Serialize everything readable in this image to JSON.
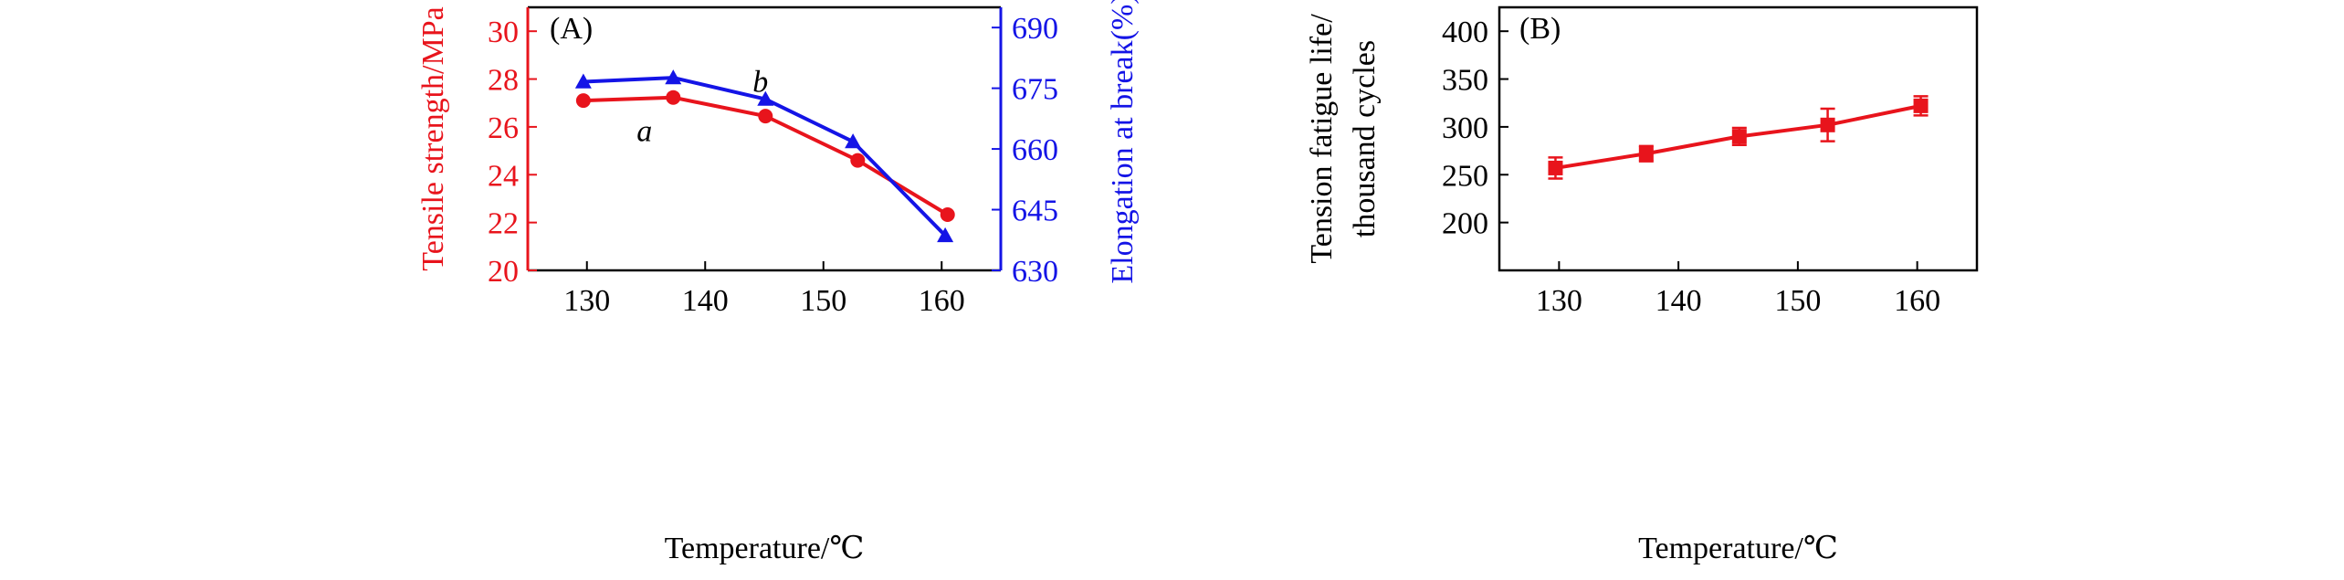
{
  "chart_data": [
    {
      "panel_label": "(A)",
      "type": "line",
      "xlabel": "Temperature/℃",
      "xlim": [
        125,
        165
      ],
      "xticks": [
        130,
        140,
        150,
        160
      ],
      "y_left": {
        "label": "Tensile strength/MPa",
        "lim": [
          20,
          31
        ],
        "ticks": [
          20,
          22,
          24,
          26,
          28,
          30
        ],
        "color": "#e8141c"
      },
      "y_right": {
        "label": "Elongation at break(%)",
        "lim": [
          630,
          695
        ],
        "ticks": [
          630,
          645,
          660,
          675,
          690
        ],
        "color": "#1414e6"
      },
      "series": [
        {
          "name": "a",
          "axis": "left",
          "marker": "circle",
          "color": "#e8141c",
          "x": [
            129.7,
            137.3,
            145.1,
            152.9,
            160.5
          ],
          "y": [
            27.1,
            27.23,
            26.45,
            24.6,
            22.33
          ]
        },
        {
          "name": "b",
          "axis": "right",
          "marker": "triangle",
          "color": "#1414e6",
          "x": [
            129.7,
            137.3,
            145.1,
            152.5,
            160.3
          ],
          "y": [
            676.6,
            677.6,
            672.3,
            661.8,
            638.6
          ]
        }
      ],
      "grid": false
    },
    {
      "panel_label": "(B)",
      "type": "line",
      "xlabel": "Temperature/℃",
      "xlim": [
        125,
        165
      ],
      "xticks": [
        130,
        140,
        150,
        160
      ],
      "y": {
        "label_lines": [
          "Tension fatigue life/",
          "thousand cycles"
        ],
        "lim": [
          150,
          425
        ],
        "ticks": [
          200,
          250,
          300,
          350,
          400
        ]
      },
      "series": [
        {
          "marker": "square",
          "color": "#e8141c",
          "x": [
            129.7,
            137.3,
            145.1,
            152.5,
            160.3
          ],
          "y": [
            257,
            272,
            290,
            302,
            322
          ],
          "err": [
            11,
            8,
            9,
            17,
            10
          ]
        }
      ],
      "grid": false
    }
  ]
}
